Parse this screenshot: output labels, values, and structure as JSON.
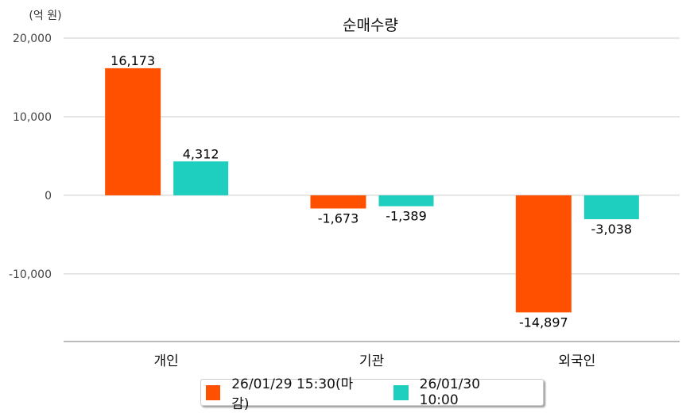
{
  "chart_data": {
    "type": "bar",
    "title": "순매수량",
    "unit_label": "(억 원)",
    "categories": [
      "개인",
      "기관",
      "외국인"
    ],
    "series": [
      {
        "name": "26/01/29 15:30(마감)",
        "color": "#FF5000",
        "values": [
          16173,
          -1673,
          -14897
        ]
      },
      {
        "name": "26/01/30 10:00",
        "color": "#1ECEBE",
        "values": [
          4312,
          -1389,
          -3038
        ]
      }
    ],
    "yticks": [
      20000,
      10000,
      0,
      -10000
    ],
    "ytick_labels": [
      "20,000",
      "10,000",
      "0",
      "-10,000"
    ],
    "data_labels": [
      [
        "16,173",
        "-1,673",
        "-14,897"
      ],
      [
        "4,312",
        "-1,389",
        "-3,038"
      ]
    ],
    "ylim": [
      -18600,
      20000
    ],
    "grid": true,
    "legend": "bottom"
  }
}
